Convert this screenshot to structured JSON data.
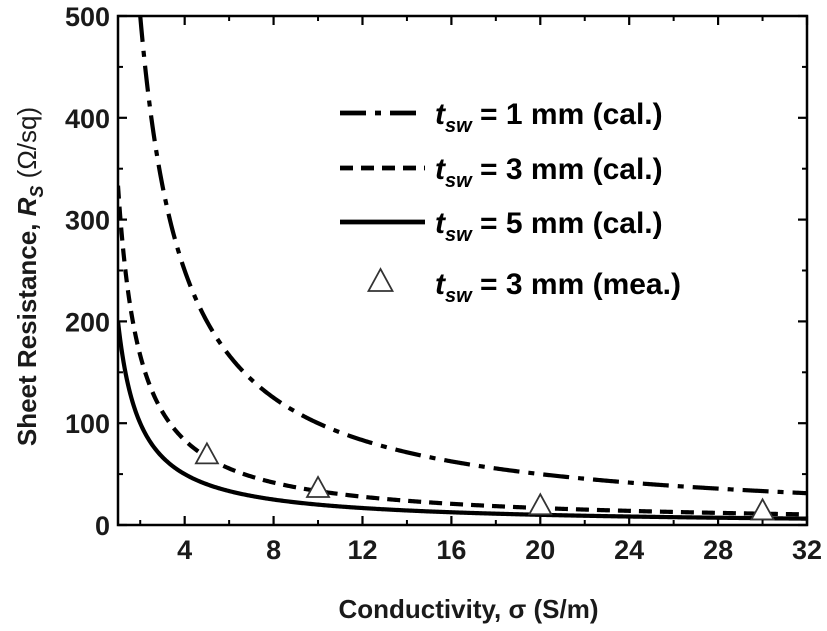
{
  "chart_data": {
    "type": "line",
    "title": "",
    "xlabel": "Conductivity, σ (S/m)",
    "ylabel": "Sheet Resistance, R_S (Ω/sq)",
    "ylabel_main": "Sheet Resistance,",
    "ylabel_symbol": "R",
    "ylabel_subscript": "S",
    "ylabel_unit": "(Ω/sq)",
    "xlim": [
      1,
      32
    ],
    "ylim": [
      0,
      500
    ],
    "xticks": [
      4,
      8,
      12,
      16,
      20,
      24,
      28,
      32
    ],
    "yticks": [
      0,
      100,
      200,
      300,
      400,
      500
    ],
    "grid": false,
    "legend_position": "top-right",
    "series": [
      {
        "name": "t_sw = 1 mm (cal.)",
        "legend_var": "t",
        "legend_sub": "sw",
        "legend_rest": " = 1 mm (cal.)",
        "style": "dashdot",
        "thickness_mm": 1,
        "x_start": 2,
        "x": [
          2,
          3,
          4,
          5,
          6,
          8,
          10,
          12,
          16,
          20,
          24,
          28,
          32
        ],
        "y": [
          500,
          333.3,
          250,
          200,
          166.7,
          125,
          100,
          83.3,
          62.5,
          50,
          41.7,
          35.7,
          31.25
        ]
      },
      {
        "name": "t_sw = 3 mm (cal.)",
        "legend_var": "t",
        "legend_sub": "sw",
        "legend_rest": " = 3 mm (cal.)",
        "style": "dashed",
        "thickness_mm": 3,
        "x_start": 1,
        "x": [
          1,
          2,
          3,
          4,
          5,
          6,
          8,
          10,
          12,
          16,
          20,
          24,
          28,
          32
        ],
        "y": [
          333.3,
          166.7,
          111.1,
          83.3,
          66.7,
          55.6,
          41.7,
          33.3,
          27.8,
          20.8,
          16.7,
          13.9,
          11.9,
          10.4
        ]
      },
      {
        "name": "t_sw = 5 mm (cal.)",
        "legend_var": "t",
        "legend_sub": "sw",
        "legend_rest": " = 5 mm (cal.)",
        "style": "solid",
        "thickness_mm": 5,
        "x_start": 1,
        "x": [
          1,
          2,
          3,
          4,
          5,
          6,
          8,
          10,
          12,
          16,
          20,
          24,
          28,
          32
        ],
        "y": [
          200,
          100,
          66.7,
          50,
          40,
          33.3,
          25,
          20,
          16.7,
          12.5,
          10,
          8.3,
          7.1,
          6.25
        ]
      },
      {
        "name": "t_sw = 3 mm (mea.)",
        "legend_var": "t",
        "legend_sub": "sw",
        "legend_rest": " = 3 mm (mea.)",
        "style": "triangle-markers",
        "x": [
          5,
          10,
          20,
          30
        ],
        "y": [
          68,
          35,
          18,
          13
        ]
      }
    ]
  }
}
